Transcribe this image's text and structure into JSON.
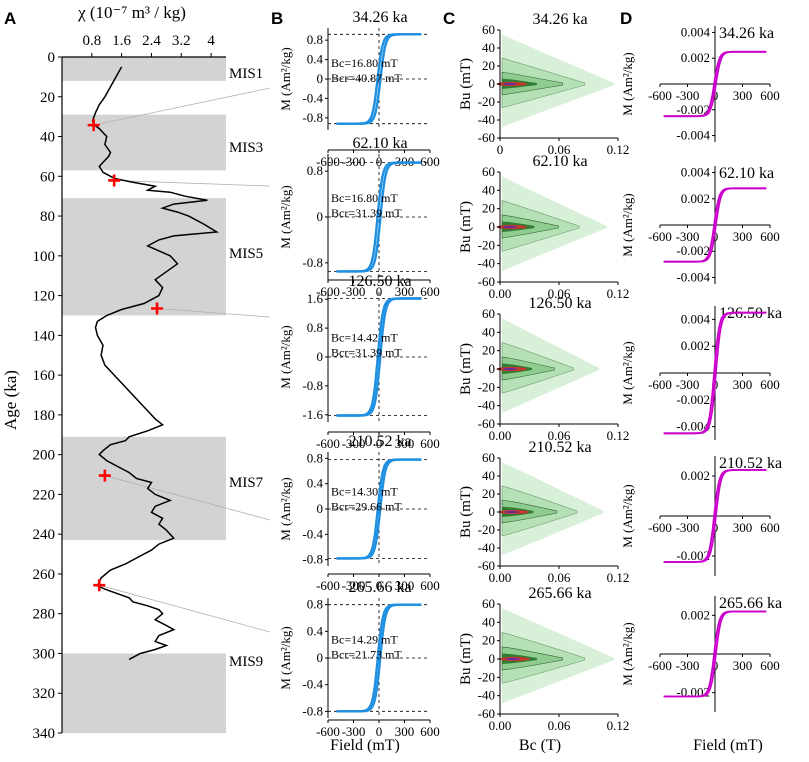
{
  "panel_letters": [
    "A",
    "B",
    "C",
    "D"
  ],
  "panel_a": {
    "x_label": "χ (10⁻⁷ m³ / kg)",
    "y_label": "Age (ka)",
    "x_ticks": [
      "0.8",
      "1.6",
      "2.4",
      "3.2",
      "4"
    ],
    "y_ticks": [
      "0",
      "20",
      "40",
      "60",
      "80",
      "100",
      "120",
      "140",
      "160",
      "180",
      "200",
      "220",
      "240",
      "260",
      "280",
      "300",
      "320",
      "340"
    ],
    "mis_labels": [
      "MIS1",
      "MIS3",
      "MIS5",
      "MIS7",
      "MIS9"
    ]
  },
  "panel_b": {
    "y_label": "M (Am²/kg)",
    "x_label": "Field (mT)",
    "x_ticks": [
      "-600",
      "-300",
      "0",
      "300",
      "600"
    ]
  },
  "panel_c": {
    "y_label": "Bu (mT)",
    "x_label": "Bc (T)",
    "x_ticks": [
      "0.00",
      "0.06",
      "0.12"
    ]
  },
  "panel_d": {
    "y_label": "M (Am²/kg)",
    "x_label": "Field (mT)",
    "x_ticks": [
      "-600",
      "-300",
      "0",
      "300",
      "600"
    ]
  },
  "samples": [
    {
      "age": "34.26 ka",
      "bc": "Bc=16.80 mT",
      "bcr": "Bcr=40.87 mT",
      "b_yticks": [
        "0.8",
        "0.4",
        "0",
        "-0.4",
        "-0.8"
      ],
      "d_yticks": [
        "0.004",
        "0.002",
        "0",
        "-0.002",
        "-0.004"
      ]
    },
    {
      "age": "62.10 ka",
      "bc": "Bc=16.80 mT",
      "bcr": "Bcr=31.39 mT",
      "b_yticks": [
        "0.8",
        "0",
        "-0.8"
      ],
      "d_yticks": [
        "0.004",
        "0.002",
        "0",
        "-0.002",
        "-0.004"
      ]
    },
    {
      "age": "126.50 ka",
      "bc": "Bc=14.42 mT",
      "bcr": "Bcr=31.39 mT",
      "b_yticks": [
        "1.6",
        "0.8",
        "0",
        "-0.8",
        "-1.6"
      ],
      "d_yticks": [
        "0.004",
        "0.002",
        "0",
        "-0.002",
        "-0.004"
      ]
    },
    {
      "age": "210.52 ka",
      "bc": "Bc=14.30 mT",
      "bcr": "Bcr=29.66 mT",
      "b_yticks": [
        "0.8",
        "0.4",
        "0",
        "-0.4",
        "-0.8"
      ],
      "d_yticks": [
        "0.002",
        "0",
        "-0.002"
      ]
    },
    {
      "age": "265.66 ka",
      "bc": "Bc=14.29 mT",
      "bcr": "Bcr=21.73 mT",
      "b_yticks": [
        "0.8",
        "0.4",
        "0",
        "-0.4",
        "-0.8"
      ],
      "d_yticks": [
        "0.002",
        "0",
        "-0.002"
      ]
    }
  ],
  "colors": {
    "mis_band": "#d3d3d3",
    "chi_line": "#000000",
    "marker": "#ff0000",
    "hysteresis": "#1f8fe0",
    "hysteresis_d": "#cc00cc",
    "forc_outer": "#d8efd8",
    "forc_mid": "#8fcc8f",
    "forc_inner": "#2e7d32",
    "forc_core": "#c0392b"
  },
  "chart_data": [
    {
      "panel": "A",
      "type": "line",
      "title": "",
      "xlabel": "χ (10⁻⁷ m³ / kg)",
      "ylabel": "Age (ka)",
      "xlim": [
        0,
        4.4
      ],
      "ylim": [
        340,
        0
      ],
      "mis_bands": [
        {
          "label": "MIS1",
          "from": 0,
          "to": 12
        },
        {
          "label": "MIS3",
          "from": 29,
          "to": 57
        },
        {
          "label": "MIS5",
          "from": 71,
          "to": 130
        },
        {
          "label": "MIS7",
          "from": 191,
          "to": 243
        },
        {
          "label": "MIS9",
          "from": 300,
          "to": 340
        }
      ],
      "series": [
        {
          "name": "magnetic susceptibility",
          "x": [
            1.6,
            1.45,
            1.3,
            1.15,
            1.0,
            0.9,
            0.82,
            0.85,
            1.0,
            1.2,
            1.15,
            1.3,
            1.25,
            1.15,
            1.0,
            1.1,
            1.4,
            1.9,
            2.2,
            2.5,
            2.3,
            2.9,
            3.3,
            3.9,
            3.0,
            2.7,
            3.1,
            3.4,
            3.8,
            4.15,
            3.0,
            2.6,
            2.3,
            2.9,
            3.1,
            2.8,
            2.5,
            2.7,
            2.6,
            2.2,
            1.6,
            1.2,
            0.95,
            0.9,
            0.95,
            1.1,
            1.05,
            1.15,
            1.3,
            1.5,
            1.7,
            1.9,
            2.1,
            2.3,
            2.5,
            2.7,
            2.3,
            1.8,
            1.7,
            1.3,
            1.1,
            1.0,
            1.2,
            1.5,
            1.8,
            2.0,
            2.4,
            2.3,
            2.5,
            2.9,
            2.5,
            2.4,
            2.7,
            2.6,
            2.8,
            3.0,
            2.6,
            2.4,
            2.0,
            1.7,
            1.3,
            1.05,
            0.95,
            1.2,
            1.5,
            1.8,
            1.9,
            2.3,
            2.6,
            2.7,
            2.5,
            2.8,
            3.0,
            2.6,
            2.5,
            2.8,
            2.5,
            2.1,
            1.8
          ],
          "y": [
            5,
            10,
            15,
            20,
            24,
            28,
            32,
            34,
            36,
            40,
            44,
            48,
            50,
            52,
            55,
            58,
            61,
            63,
            64,
            65,
            67,
            68,
            70,
            72,
            74,
            76,
            78,
            80,
            84,
            88,
            90,
            92,
            95,
            100,
            104,
            108,
            112,
            116,
            120,
            124,
            127,
            130,
            133,
            136,
            140,
            145,
            150,
            155,
            158,
            162,
            166,
            170,
            174,
            178,
            182,
            185,
            188,
            191,
            193,
            195,
            198,
            200,
            203,
            206,
            209,
            212,
            214,
            217,
            220,
            223,
            226,
            229,
            232,
            235,
            238,
            242,
            245,
            248,
            252,
            255,
            258,
            262,
            266,
            268,
            270,
            272,
            274,
            276,
            278,
            280,
            283,
            286,
            288,
            291,
            294,
            296,
            298,
            300,
            303
          ]
        }
      ],
      "markers": [
        {
          "x": 0.85,
          "y": 34.26
        },
        {
          "x": 1.4,
          "y": 62.1
        },
        {
          "x": 2.55,
          "y": 126.5
        },
        {
          "x": 1.15,
          "y": 210.52
        },
        {
          "x": 1.0,
          "y": 265.66
        }
      ],
      "connector_targets": [
        "34.26 ka",
        "62.10 ka",
        "126.50 ka",
        "210.52 ka",
        "265.66 ka"
      ]
    },
    {
      "panel": "B",
      "type": "line",
      "xlabel": "Field (mT)",
      "ylabel": "M (Am²/kg)",
      "xlim": [
        -600,
        600
      ],
      "loops": [
        {
          "title": "34.26 ka",
          "ms": 0.92,
          "bc": 16.8,
          "bcr": 40.87,
          "ylim": [
            -1.05,
            1.05
          ],
          "sat_field": 500
        },
        {
          "title": "62.10 ka",
          "ms": 0.95,
          "bc": 16.8,
          "bcr": 31.39,
          "ylim": [
            -1.1,
            1.1
          ],
          "sat_field": 500
        },
        {
          "title": "126.50 ka",
          "ms": 1.62,
          "bc": 14.42,
          "bcr": 31.39,
          "ylim": [
            -1.8,
            1.8
          ],
          "sat_field": 500
        },
        {
          "title": "210.52 ka",
          "ms": 0.78,
          "bc": 14.3,
          "bcr": 29.66,
          "ylim": [
            -0.9,
            0.9
          ],
          "sat_field": 500
        },
        {
          "title": "265.66 ka",
          "ms": 0.8,
          "bc": 14.29,
          "bcr": 21.73,
          "ylim": [
            -0.9,
            0.9
          ],
          "sat_field": 500
        }
      ]
    },
    {
      "panel": "C",
      "type": "heatmap",
      "xlabel": "Bc (T)",
      "ylabel": "Bu (mT)",
      "xlim": [
        0,
        0.12
      ],
      "ylim": [
        -60,
        60
      ],
      "y_ticks": [
        60,
        40,
        20,
        0,
        -20,
        -40,
        -60
      ],
      "diagrams": [
        {
          "title": "34.26 ka",
          "peak_bc": 0.012,
          "spread_bc": 0.075
        },
        {
          "title": "62.10 ka",
          "peak_bc": 0.012,
          "spread_bc": 0.07
        },
        {
          "title": "126.50 ka",
          "peak_bc": 0.012,
          "spread_bc": 0.065
        },
        {
          "title": "210.52 ka",
          "peak_bc": 0.014,
          "spread_bc": 0.068
        },
        {
          "title": "265.66 ka",
          "peak_bc": 0.015,
          "spread_bc": 0.075
        }
      ]
    },
    {
      "panel": "D",
      "type": "line",
      "xlabel": "Field (mT)",
      "ylabel": "M (Am²/kg)",
      "xlim": [
        -600,
        600
      ],
      "loops": [
        {
          "title": "34.26 ka",
          "ms": 0.0025,
          "ylim": [
            -0.0045,
            0.0045
          ]
        },
        {
          "title": "62.10 ka",
          "ms": 0.0028,
          "ylim": [
            -0.0045,
            0.0045
          ]
        },
        {
          "title": "126.50 ka",
          "ms": 0.0045,
          "ylim": [
            -0.005,
            0.005
          ]
        },
        {
          "title": "210.52 ka",
          "ms": 0.0023,
          "ylim": [
            -0.003,
            0.003
          ]
        },
        {
          "title": "265.66 ka",
          "ms": 0.0022,
          "ylim": [
            -0.003,
            0.003
          ]
        }
      ]
    }
  ]
}
